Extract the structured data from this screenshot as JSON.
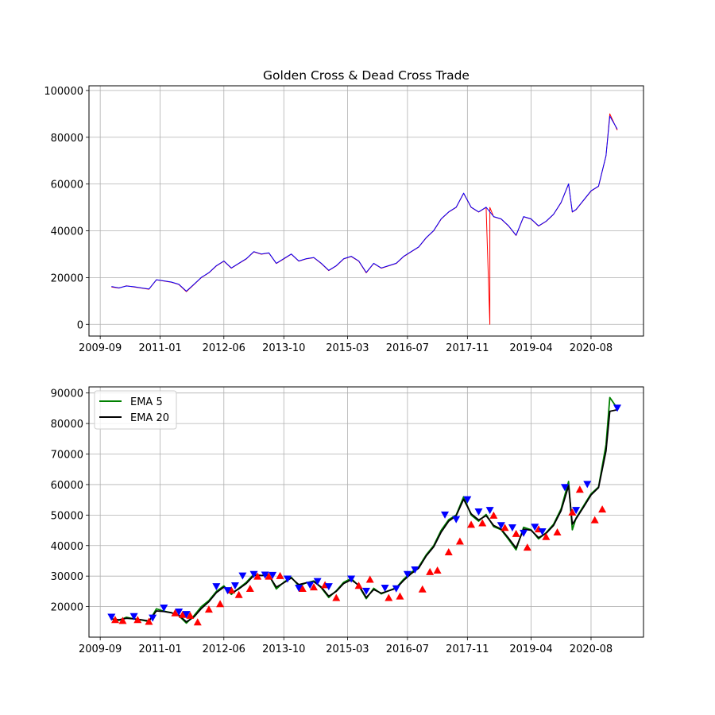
{
  "chart_data": [
    {
      "type": "line",
      "title": "Golden Cross & Dead Cross Trade",
      "xlabel": "",
      "ylabel": "",
      "x_tick_labels": [
        "2009-09",
        "2011-01",
        "2012-06",
        "2013-10",
        "2015-03",
        "2016-07",
        "2017-11",
        "2019-04",
        "2020-08"
      ],
      "x_range": [
        "2009-06",
        "2021-10"
      ],
      "ylim": [
        -5000,
        102000
      ],
      "y_ticks": [
        0,
        20000,
        40000,
        60000,
        80000,
        100000
      ],
      "grid": true,
      "series": [
        {
          "color": "#ff0000",
          "x": [
            "2009-12",
            "2010-02",
            "2010-04",
            "2010-06",
            "2010-08",
            "2010-10",
            "2010-12",
            "2011-02",
            "2011-04",
            "2011-06",
            "2011-08",
            "2011-10",
            "2011-12",
            "2012-02",
            "2012-04",
            "2012-06",
            "2012-08",
            "2012-10",
            "2012-12",
            "2013-02",
            "2013-04",
            "2013-06",
            "2013-08",
            "2013-10",
            "2013-12",
            "2014-02",
            "2014-04",
            "2014-06",
            "2014-08",
            "2014-10",
            "2014-12",
            "2015-02",
            "2015-04",
            "2015-06",
            "2015-08",
            "2015-10",
            "2015-12",
            "2016-02",
            "2016-04",
            "2016-06",
            "2016-08",
            "2016-10",
            "2016-12",
            "2017-02",
            "2017-04",
            "2017-06",
            "2017-08",
            "2017-10",
            "2017-12",
            "2018-02",
            "2018-04",
            "2018-05",
            "2018-05",
            "2018-06",
            "2018-08",
            "2018-10",
            "2018-12",
            "2019-02",
            "2019-04",
            "2019-06",
            "2019-08",
            "2019-10",
            "2019-12",
            "2020-02",
            "2020-03",
            "2020-04",
            "2020-06",
            "2020-08",
            "2020-10",
            "2020-12",
            "2021-01",
            "2021-03"
          ],
          "values": [
            16000,
            15500,
            16500,
            16000,
            15500,
            15000,
            19000,
            18500,
            18000,
            17000,
            14000,
            17000,
            20000,
            22000,
            25000,
            27000,
            24000,
            26000,
            28000,
            31000,
            30000,
            30500,
            26000,
            28000,
            30000,
            27000,
            28000,
            28500,
            26000,
            23000,
            25000,
            28000,
            29000,
            27000,
            22000,
            26000,
            24000,
            25000,
            26000,
            29000,
            31000,
            33000,
            37000,
            40000,
            45000,
            48000,
            50000,
            56000,
            50000,
            48000,
            50000,
            0,
            50000,
            46000,
            45000,
            42000,
            38000,
            46000,
            45000,
            42000,
            44000,
            47000,
            52000,
            60000,
            48000,
            49000,
            53000,
            57000,
            59000,
            72000,
            90000,
            83000
          ]
        },
        {
          "color": "#0000ff",
          "x": [
            "2009-12",
            "2010-02",
            "2010-04",
            "2010-06",
            "2010-08",
            "2010-10",
            "2010-12",
            "2011-02",
            "2011-04",
            "2011-06",
            "2011-08",
            "2011-10",
            "2011-12",
            "2012-02",
            "2012-04",
            "2012-06",
            "2012-08",
            "2012-10",
            "2012-12",
            "2013-02",
            "2013-04",
            "2013-06",
            "2013-08",
            "2013-10",
            "2013-12",
            "2014-02",
            "2014-04",
            "2014-06",
            "2014-08",
            "2014-10",
            "2014-12",
            "2015-02",
            "2015-04",
            "2015-06",
            "2015-08",
            "2015-10",
            "2015-12",
            "2016-02",
            "2016-04",
            "2016-06",
            "2016-08",
            "2016-10",
            "2016-12",
            "2017-02",
            "2017-04",
            "2017-06",
            "2017-08",
            "2017-10",
            "2017-12",
            "2018-02",
            "2018-04",
            "2018-06",
            "2018-08",
            "2018-10",
            "2018-12",
            "2019-02",
            "2019-04",
            "2019-06",
            "2019-08",
            "2019-10",
            "2019-12",
            "2020-02",
            "2020-03",
            "2020-04",
            "2020-06",
            "2020-08",
            "2020-10",
            "2020-12",
            "2021-01",
            "2021-03"
          ],
          "values": [
            16200,
            15600,
            16400,
            16100,
            15600,
            15100,
            19100,
            18600,
            18100,
            17100,
            14200,
            17100,
            20100,
            22100,
            25100,
            27100,
            24100,
            26100,
            28100,
            31100,
            30100,
            30600,
            26100,
            28100,
            30100,
            27100,
            28100,
            28600,
            26100,
            23100,
            25100,
            28100,
            29100,
            27100,
            22200,
            26100,
            24100,
            25100,
            26100,
            29100,
            31100,
            33100,
            37100,
            40100,
            45100,
            48100,
            50100,
            56100,
            50100,
            48100,
            50100,
            46100,
            45100,
            42100,
            38100,
            46100,
            45100,
            42100,
            44100,
            47100,
            52100,
            60100,
            48100,
            49100,
            53100,
            57100,
            59100,
            72100,
            89000,
            83500
          ]
        }
      ]
    },
    {
      "type": "line",
      "title": "",
      "xlabel": "",
      "ylabel": "",
      "x_tick_labels": [
        "2009-09",
        "2011-01",
        "2012-06",
        "2013-10",
        "2015-03",
        "2016-07",
        "2017-11",
        "2019-04",
        "2020-08"
      ],
      "x_range": [
        "2009-06",
        "2021-10"
      ],
      "ylim": [
        10000,
        92000
      ],
      "y_ticks": [
        20000,
        30000,
        40000,
        50000,
        60000,
        70000,
        80000,
        90000
      ],
      "grid": true,
      "legend_position": "upper left",
      "series": [
        {
          "name": "EMA 5",
          "color": "#008000",
          "x": [
            "2009-12",
            "2010-02",
            "2010-04",
            "2010-06",
            "2010-08",
            "2010-10",
            "2010-12",
            "2011-02",
            "2011-04",
            "2011-06",
            "2011-08",
            "2011-10",
            "2011-12",
            "2012-02",
            "2012-04",
            "2012-06",
            "2012-08",
            "2012-10",
            "2012-12",
            "2013-02",
            "2013-04",
            "2013-06",
            "2013-08",
            "2013-10",
            "2013-12",
            "2014-02",
            "2014-04",
            "2014-06",
            "2014-08",
            "2014-10",
            "2014-12",
            "2015-02",
            "2015-04",
            "2015-06",
            "2015-08",
            "2015-10",
            "2015-12",
            "2016-02",
            "2016-04",
            "2016-06",
            "2016-08",
            "2016-10",
            "2016-12",
            "2017-02",
            "2017-04",
            "2017-06",
            "2017-08",
            "2017-10",
            "2017-12",
            "2018-02",
            "2018-04",
            "2018-06",
            "2018-08",
            "2018-10",
            "2018-12",
            "2019-02",
            "2019-04",
            "2019-06",
            "2019-08",
            "2019-10",
            "2019-12",
            "2020-02",
            "2020-03",
            "2020-04",
            "2020-06",
            "2020-08",
            "2020-10",
            "2020-12",
            "2021-01",
            "2021-03"
          ],
          "values": [
            16000,
            15500,
            16500,
            16000,
            15600,
            15100,
            19300,
            18500,
            18000,
            17000,
            14600,
            17000,
            20000,
            22000,
            25000,
            26800,
            24000,
            26000,
            28000,
            30600,
            30200,
            30400,
            25800,
            28000,
            29600,
            26800,
            27800,
            28400,
            26200,
            23000,
            25200,
            28000,
            29200,
            26800,
            22600,
            26000,
            24200,
            25200,
            26200,
            29000,
            31200,
            33000,
            37000,
            40000,
            45000,
            48500,
            50000,
            56000,
            50000,
            48000,
            50200,
            46200,
            45200,
            42000,
            38600,
            46000,
            45200,
            42200,
            44200,
            47000,
            52000,
            61000,
            45200,
            49000,
            53000,
            57000,
            59200,
            73000,
            88500,
            85000
          ]
        },
        {
          "name": "EMA 20",
          "color": "#000000",
          "x": [
            "2009-12",
            "2010-02",
            "2010-04",
            "2010-06",
            "2010-08",
            "2010-10",
            "2010-12",
            "2011-02",
            "2011-04",
            "2011-06",
            "2011-08",
            "2011-10",
            "2011-12",
            "2012-02",
            "2012-04",
            "2012-06",
            "2012-08",
            "2012-10",
            "2012-12",
            "2013-02",
            "2013-04",
            "2013-06",
            "2013-08",
            "2013-10",
            "2013-12",
            "2014-02",
            "2014-04",
            "2014-06",
            "2014-08",
            "2014-10",
            "2014-12",
            "2015-02",
            "2015-04",
            "2015-06",
            "2015-08",
            "2015-10",
            "2015-12",
            "2016-02",
            "2016-04",
            "2016-06",
            "2016-08",
            "2016-10",
            "2016-12",
            "2017-02",
            "2017-04",
            "2017-06",
            "2017-08",
            "2017-10",
            "2017-12",
            "2018-02",
            "2018-04",
            "2018-06",
            "2018-08",
            "2018-10",
            "2018-12",
            "2019-02",
            "2019-04",
            "2019-06",
            "2019-08",
            "2019-10",
            "2019-12",
            "2020-02",
            "2020-03",
            "2020-04",
            "2020-06",
            "2020-08",
            "2020-10",
            "2020-12",
            "2021-01",
            "2021-03"
          ],
          "values": [
            16000,
            15700,
            16200,
            16000,
            15700,
            15300,
            18600,
            18400,
            18000,
            17200,
            15000,
            16600,
            19400,
            21600,
            24600,
            26400,
            24400,
            25800,
            27600,
            30200,
            30200,
            30200,
            26400,
            27800,
            29400,
            27200,
            27800,
            28200,
            26400,
            23400,
            25000,
            27600,
            28800,
            27000,
            23000,
            25600,
            24400,
            25200,
            26000,
            28600,
            30800,
            32600,
            36600,
            39600,
            44400,
            48000,
            49800,
            55200,
            50400,
            48400,
            49800,
            46600,
            45400,
            42400,
            39200,
            45400,
            45000,
            42600,
            44000,
            46600,
            51400,
            59600,
            47000,
            48800,
            52600,
            56600,
            59000,
            71000,
            84000,
            84500
          ]
        }
      ],
      "golden_cross_markers": {
        "color": "#ff0000",
        "shape": "triangle-up",
        "x": [
          "2010-01",
          "2010-03",
          "2010-07",
          "2010-10",
          "2011-05",
          "2011-07",
          "2011-09",
          "2011-11",
          "2012-02",
          "2012-05",
          "2012-08",
          "2012-10",
          "2013-01",
          "2013-03",
          "2013-06",
          "2013-09",
          "2014-03",
          "2014-06",
          "2014-09",
          "2014-12",
          "2015-06",
          "2015-09",
          "2016-02",
          "2016-05",
          "2016-11",
          "2017-01",
          "2017-03",
          "2017-06",
          "2017-09",
          "2017-12",
          "2018-03",
          "2018-06",
          "2018-09",
          "2018-12",
          "2019-03",
          "2019-06",
          "2019-08",
          "2019-11",
          "2020-03",
          "2020-05",
          "2020-09",
          "2020-11"
        ],
        "values": [
          15800,
          15500,
          15800,
          15200,
          18000,
          17500,
          17200,
          15000,
          19200,
          21000,
          25500,
          24000,
          26000,
          30000,
          30000,
          30200,
          26000,
          26500,
          27200,
          23000,
          27000,
          29000,
          23000,
          23500,
          25800,
          31500,
          32000,
          38000,
          41500,
          47000,
          47500,
          50000,
          46000,
          44000,
          39500,
          45500,
          43000,
          44500,
          51000,
          58500,
          48500,
          52000
        ]
      },
      "dead_cross_markers": {
        "color": "#0000ff",
        "shape": "triangle-down",
        "x": [
          "2009-12",
          "2010-06",
          "2010-11",
          "2011-02",
          "2011-06",
          "2011-08",
          "2012-04",
          "2012-07",
          "2012-09",
          "2012-11",
          "2013-02",
          "2013-05",
          "2013-07",
          "2013-11",
          "2014-02",
          "2014-05",
          "2014-07",
          "2014-10",
          "2015-04",
          "2015-08",
          "2016-01",
          "2016-04",
          "2016-07",
          "2016-09",
          "2017-05",
          "2017-08",
          "2017-11",
          "2018-02",
          "2018-05",
          "2018-08",
          "2018-11",
          "2019-02",
          "2019-05",
          "2019-07",
          "2020-01",
          "2020-04",
          "2020-07",
          "2021-03"
        ],
        "values": [
          16500,
          16700,
          16200,
          19500,
          18200,
          17400,
          26500,
          25200,
          26800,
          30000,
          30500,
          30300,
          30200,
          29000,
          26000,
          27000,
          28200,
          26500,
          29000,
          25000,
          26000,
          25800,
          30500,
          32000,
          50000,
          48500,
          55000,
          51000,
          51500,
          46500,
          45800,
          44000,
          46000,
          44500,
          59000,
          51500,
          60000,
          85000
        ]
      },
      "legend_entries": [
        "EMA 5",
        "EMA 20"
      ]
    }
  ]
}
